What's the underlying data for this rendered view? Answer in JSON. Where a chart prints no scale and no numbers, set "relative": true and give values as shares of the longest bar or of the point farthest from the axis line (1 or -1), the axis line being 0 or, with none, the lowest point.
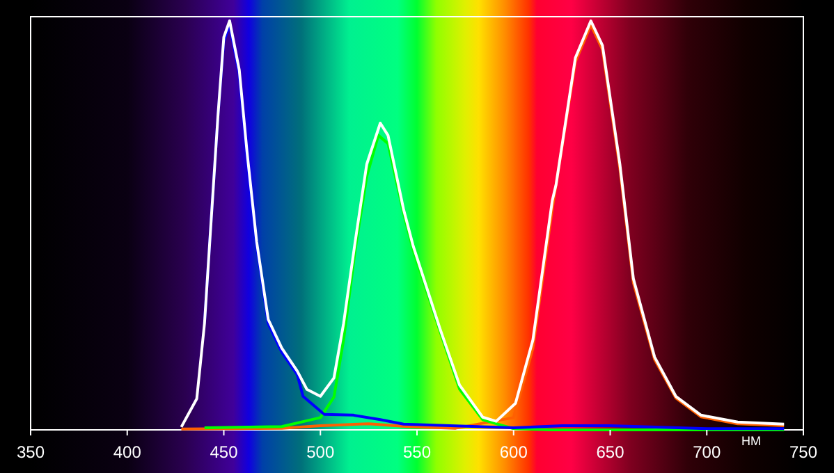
{
  "chart_data": {
    "type": "line",
    "relative": true,
    "xlabel": "НМ",
    "xlim": [
      350,
      750
    ],
    "xticks": [
      350,
      400,
      450,
      500,
      550,
      600,
      650,
      700,
      750
    ],
    "series": [
      {
        "color": "#ff6000",
        "x": [
          428,
          480,
          500,
          525,
          545,
          570,
          600,
          610,
          620,
          632,
          640,
          646,
          655,
          662,
          673,
          684,
          697,
          716,
          740
        ],
        "values": [
          0.002,
          0.004,
          0.01,
          0.015,
          0.008,
          0.004,
          0.03,
          0.2,
          0.54,
          0.9,
          0.99,
          0.93,
          0.64,
          0.36,
          0.172,
          0.078,
          0.032,
          0.015,
          0.01
        ]
      },
      {
        "color": "#00ff00",
        "x": [
          440,
          480,
          500,
          507,
          512,
          518,
          524,
          530,
          535,
          543,
          548,
          562,
          572,
          584,
          591,
          600,
          620,
          740
        ],
        "values": [
          0.005,
          0.008,
          0.03,
          0.08,
          0.22,
          0.44,
          0.62,
          0.72,
          0.7,
          0.53,
          0.44,
          0.24,
          0.1,
          0.025,
          0.015,
          0.003,
          0,
          0
        ]
      },
      {
        "color": "#0000ff",
        "x": [
          440,
          443,
          447,
          450,
          453,
          458,
          462,
          467,
          473,
          480,
          488,
          491,
          502,
          517,
          531,
          543,
          600,
          625,
          650,
          700,
          740
        ],
        "values": [
          0.26,
          0.48,
          0.77,
          0.95,
          0.99,
          0.87,
          0.67,
          0.45,
          0.26,
          0.19,
          0.135,
          0.082,
          0.038,
          0.036,
          0.025,
          0.014,
          0.005,
          0.01,
          0.01,
          0.003,
          0.003
        ]
      },
      {
        "color": "#ffffff",
        "x": [
          428,
          436,
          440,
          443,
          447,
          450,
          453,
          458,
          462,
          467,
          473,
          480,
          488,
          493,
          500,
          507,
          512,
          518,
          524,
          531,
          535,
          543,
          548,
          562,
          572,
          584,
          591,
          601,
          610,
          620,
          622,
          632,
          640,
          646,
          655,
          662,
          673,
          684,
          697,
          716,
          740
        ],
        "values": [
          0.007,
          0.076,
          0.26,
          0.48,
          0.77,
          0.96,
          1,
          0.88,
          0.68,
          0.46,
          0.27,
          0.2,
          0.144,
          0.099,
          0.082,
          0.127,
          0.26,
          0.46,
          0.65,
          0.75,
          0.72,
          0.54,
          0.45,
          0.246,
          0.11,
          0.031,
          0.021,
          0.065,
          0.22,
          0.56,
          0.6,
          0.91,
          1,
          0.94,
          0.65,
          0.37,
          0.178,
          0.082,
          0.036,
          0.019,
          0.014
        ]
      }
    ]
  }
}
